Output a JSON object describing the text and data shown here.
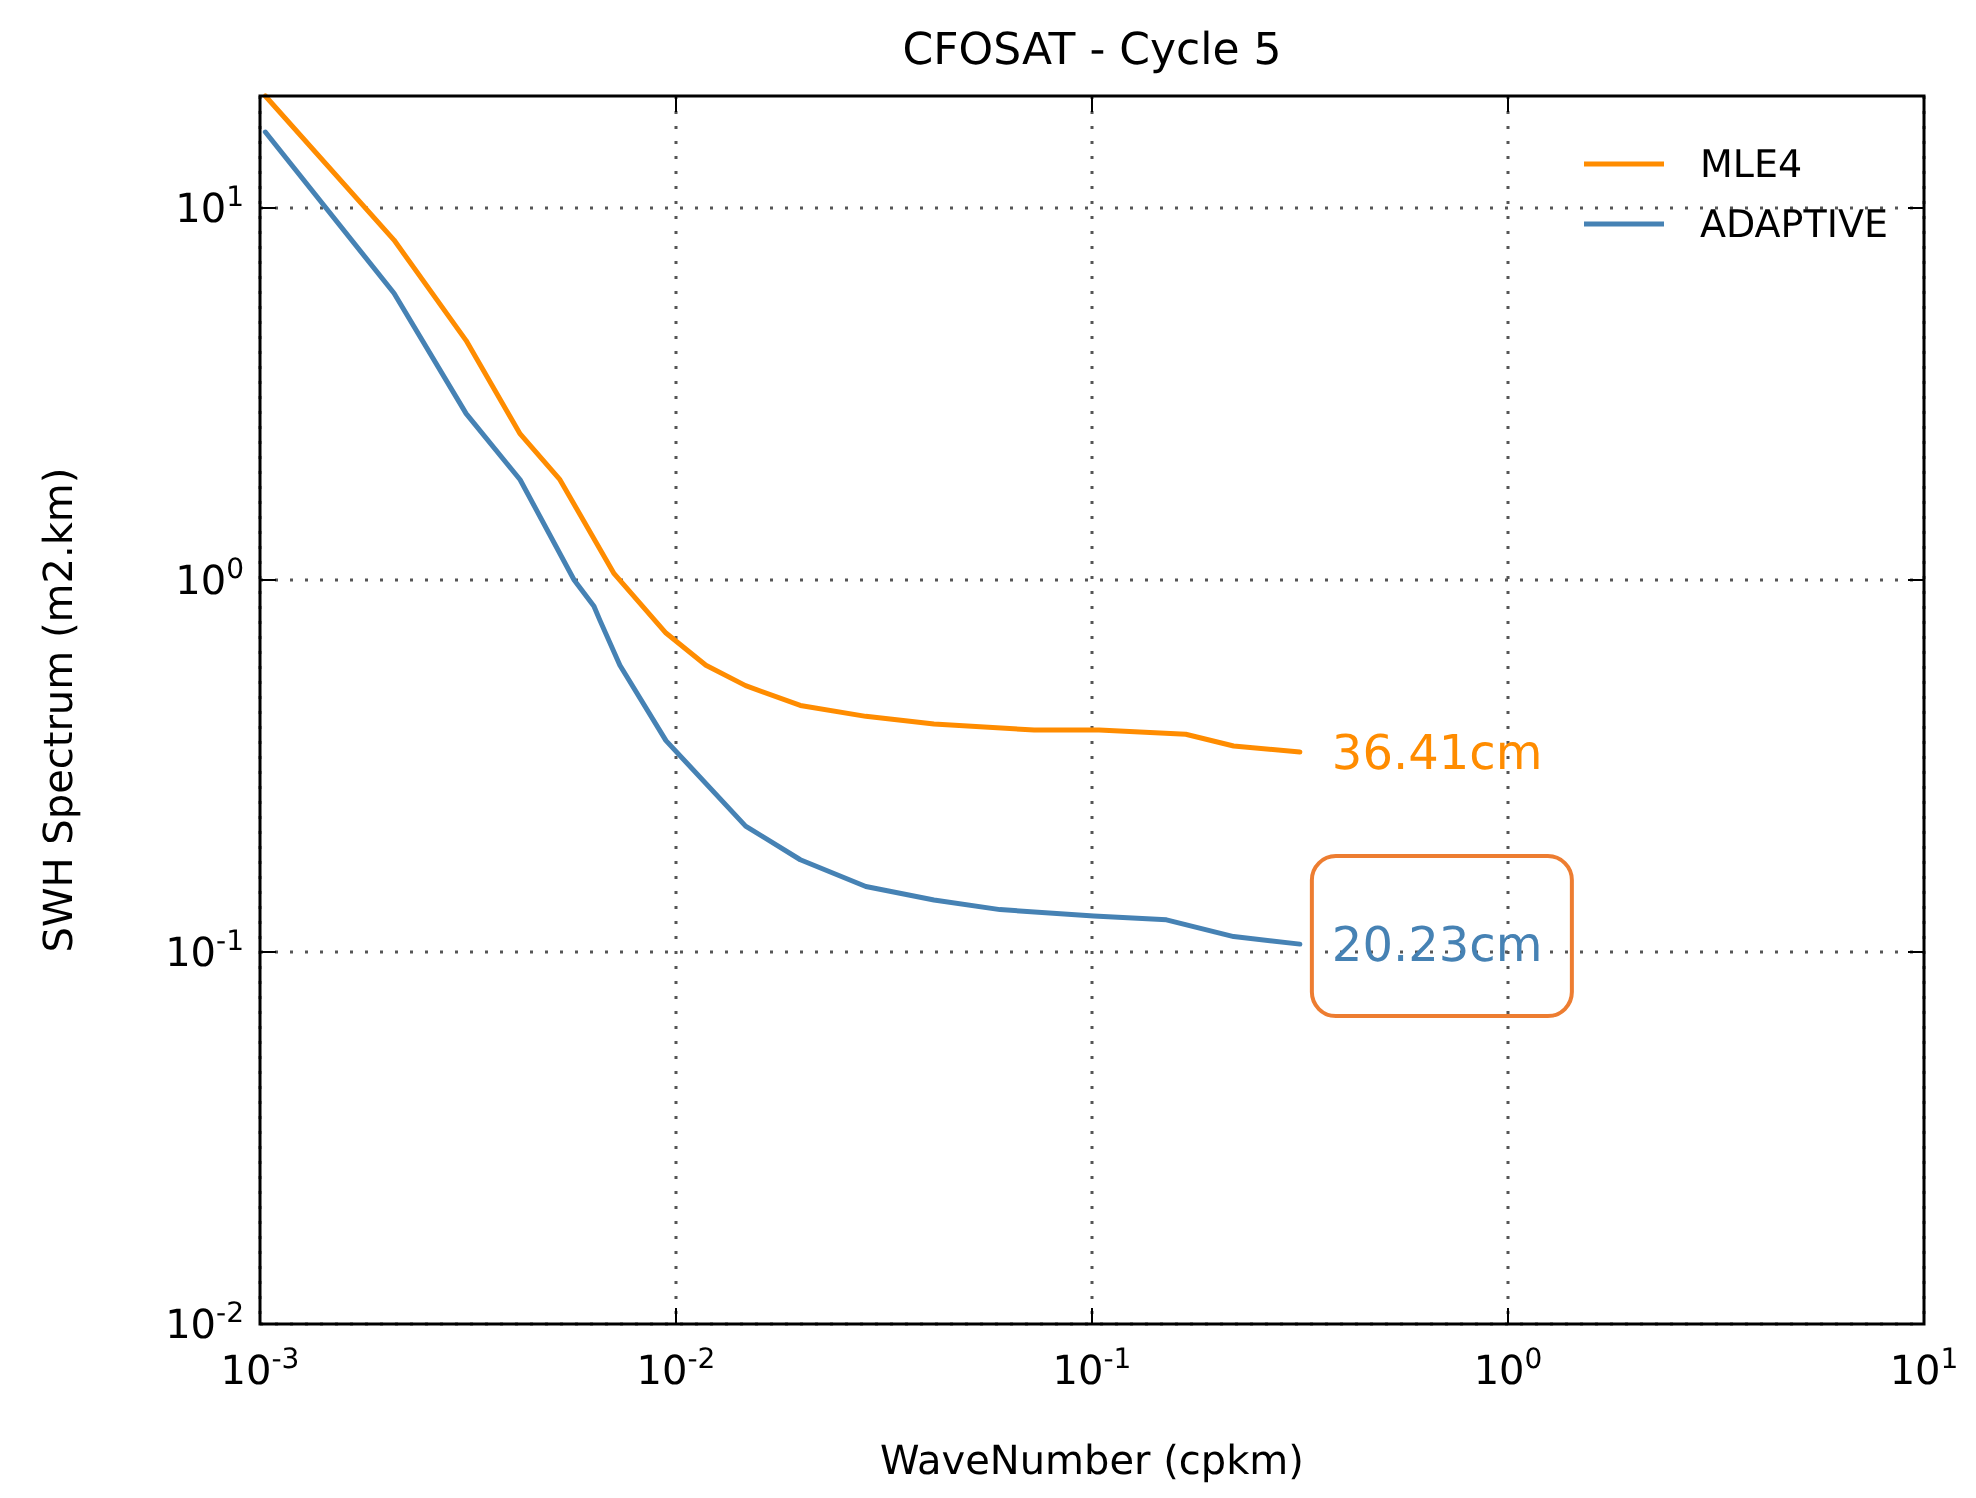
{
  "chart_data": {
    "type": "line",
    "title": "CFOSAT - Cycle 5",
    "xlabel": "WaveNumber (cpkm)",
    "ylabel": "SWH Spectrum (m2.km)",
    "log": "xy",
    "xlim": [
      0.001,
      10
    ],
    "ylim": [
      0.01,
      20
    ],
    "xticks": [
      {
        "value": 0.001,
        "label": "10$^{-3}$"
      },
      {
        "value": 0.01,
        "label": "10$^{-2}$"
      },
      {
        "value": 0.1,
        "label": "10$^{-1}$"
      },
      {
        "value": 1,
        "label": "10$^{0}$"
      },
      {
        "value": 10,
        "label": "10$^{1}$"
      }
    ],
    "yticks": [
      {
        "value": 0.01,
        "label": "10$^{-2}$"
      },
      {
        "value": 0.1,
        "label": "10$^{-1}$"
      },
      {
        "value": 1,
        "label": "10$^{0}$"
      },
      {
        "value": 10,
        "label": "10$^{1}$"
      }
    ],
    "grid": true,
    "legend": "top right",
    "marker": "none",
    "line_style": "solid",
    "series": [
      {
        "name": "MLE4",
        "color": "#ff8c00",
        "x": [
          0.00103,
          0.0021,
          0.00313,
          0.00422,
          0.00526,
          0.0071,
          0.00946,
          0.0118,
          0.0147,
          0.0199,
          0.0286,
          0.0417,
          0.0726,
          0.104,
          0.168,
          0.219,
          0.316
        ],
        "values": [
          20,
          8.2,
          4.4,
          2.47,
          1.86,
          1.04,
          0.72,
          0.59,
          0.52,
          0.46,
          0.43,
          0.41,
          0.395,
          0.395,
          0.385,
          0.358,
          0.345
        ]
      },
      {
        "name": "ADAPTIVE",
        "color": "#4682b4",
        "x": [
          0.00103,
          0.0021,
          0.00313,
          0.00422,
          0.00569,
          0.00635,
          0.00656,
          0.00733,
          0.00946,
          0.0147,
          0.0199,
          0.0286,
          0.0417,
          0.0601,
          0.101,
          0.151,
          0.219,
          0.316
        ],
        "values": [
          16,
          5.9,
          2.8,
          1.86,
          1.0,
          0.85,
          0.78,
          0.59,
          0.37,
          0.218,
          0.177,
          0.15,
          0.138,
          0.13,
          0.125,
          0.122,
          0.11,
          0.105
        ]
      }
    ],
    "annotations": [
      "36.41cm",
      "20.23cm"
    ]
  }
}
